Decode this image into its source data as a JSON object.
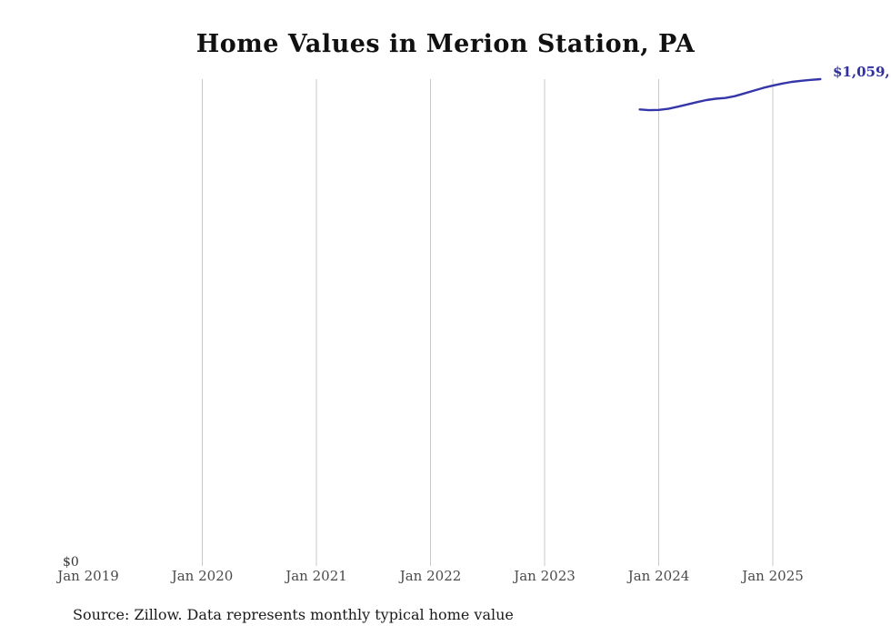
{
  "chart_data": {
    "type": "line",
    "title": "Home Values in Merion Station, PA",
    "source": "Source: Zillow. Data represents monthly typical home value",
    "y_zero_label": "$0",
    "end_label": "$1,059,",
    "line_color": "#3636ab",
    "end_label_color": "#31319e",
    "gridline_color": "#c9c9c9",
    "ylim": [
      0,
      1059000
    ],
    "x_ticks": [
      {
        "label": "Jan 2019",
        "year": 2019,
        "gridline": false
      },
      {
        "label": "Jan 2020",
        "year": 2020,
        "gridline": true
      },
      {
        "label": "Jan 2021",
        "year": 2021,
        "gridline": true
      },
      {
        "label": "Jan 2022",
        "year": 2022,
        "gridline": true
      },
      {
        "label": "Jan 2023",
        "year": 2023,
        "gridline": true
      },
      {
        "label": "Jan 2024",
        "year": 2024,
        "gridline": true
      },
      {
        "label": "Jan 2025",
        "year": 2025,
        "gridline": true
      }
    ],
    "series": [
      {
        "name": "Typical home value",
        "points": [
          {
            "date": "2023-11",
            "value": 993000
          },
          {
            "date": "2023-12",
            "value": 991500
          },
          {
            "date": "2024-01",
            "value": 992000
          },
          {
            "date": "2024-02",
            "value": 994500
          },
          {
            "date": "2024-03",
            "value": 999000
          },
          {
            "date": "2024-04",
            "value": 1004000
          },
          {
            "date": "2024-05",
            "value": 1009000
          },
          {
            "date": "2024-06",
            "value": 1013500
          },
          {
            "date": "2024-07",
            "value": 1016500
          },
          {
            "date": "2024-08",
            "value": 1018000
          },
          {
            "date": "2024-09",
            "value": 1022000
          },
          {
            "date": "2024-10",
            "value": 1028000
          },
          {
            "date": "2024-11",
            "value": 1034000
          },
          {
            "date": "2024-12",
            "value": 1040000
          },
          {
            "date": "2025-01",
            "value": 1045000
          },
          {
            "date": "2025-02",
            "value": 1049500
          },
          {
            "date": "2025-03",
            "value": 1053000
          },
          {
            "date": "2025-04",
            "value": 1055500
          },
          {
            "date": "2025-05",
            "value": 1057500
          },
          {
            "date": "2025-06",
            "value": 1059000
          }
        ]
      }
    ]
  }
}
